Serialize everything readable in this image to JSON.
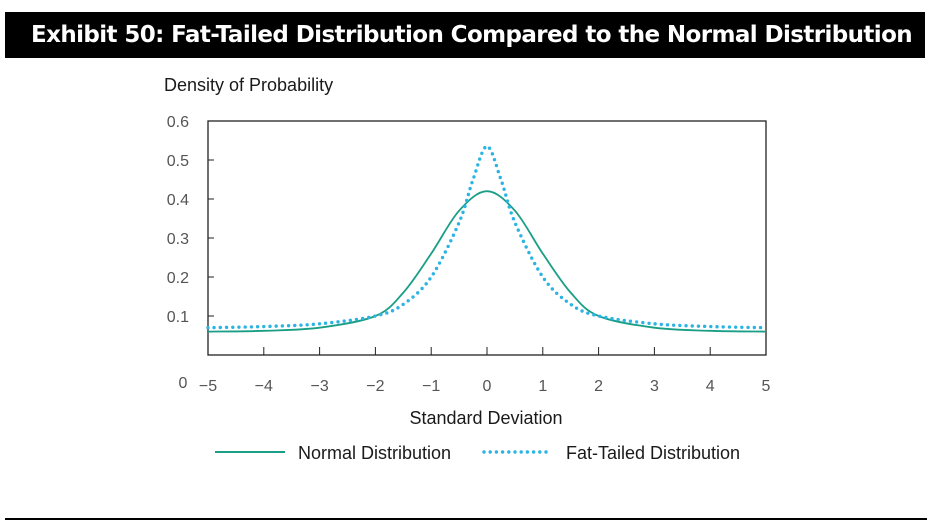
{
  "exhibit_title": "Exhibit 50: Fat-Tailed Distribution Compared to the Normal Distribution",
  "chart_data": {
    "type": "line",
    "ylabel": "Density of Probability",
    "xlabel": "Standard Deviation",
    "xlim": [
      -5,
      5
    ],
    "ylim": [
      0,
      0.6
    ],
    "x_ticks": [
      -5,
      -4,
      -3,
      -2,
      -1,
      0,
      1,
      2,
      3,
      4,
      5
    ],
    "x_tick_labels": [
      "−5",
      "−4",
      "−3",
      "−2",
      "−1",
      "0",
      "1",
      "2",
      "3",
      "4",
      "5"
    ],
    "y_ticks": [
      0.1,
      0.2,
      0.3,
      0.4,
      0.5,
      0.6
    ],
    "y_tick_labels": [
      "0.1",
      "0.2",
      "0.3",
      "0.4",
      "0.5",
      "0.6"
    ],
    "origin_label": "0",
    "grid": false,
    "legend_position": "bottom",
    "series": [
      {
        "name": "Normal Distribution",
        "color": "#1a9e85",
        "style": "solid",
        "x": [
          -5,
          -4,
          -3,
          -2,
          -1.5,
          -1,
          -0.5,
          0,
          0.5,
          1,
          1.5,
          2,
          3,
          4,
          5
        ],
        "y": [
          0.06,
          0.062,
          0.07,
          0.1,
          0.16,
          0.26,
          0.37,
          0.42,
          0.37,
          0.26,
          0.16,
          0.1,
          0.07,
          0.062,
          0.06
        ]
      },
      {
        "name": "Fat-Tailed Distribution",
        "color": "#2ab3e3",
        "style": "dotted",
        "x": [
          -5,
          -4,
          -3,
          -2,
          -1.5,
          -1,
          -0.5,
          -0.25,
          0,
          0.25,
          0.5,
          1,
          1.5,
          2,
          3,
          4,
          5
        ],
        "y": [
          0.07,
          0.073,
          0.08,
          0.1,
          0.13,
          0.2,
          0.34,
          0.45,
          0.535,
          0.45,
          0.34,
          0.2,
          0.13,
          0.1,
          0.08,
          0.073,
          0.07
        ]
      }
    ]
  }
}
